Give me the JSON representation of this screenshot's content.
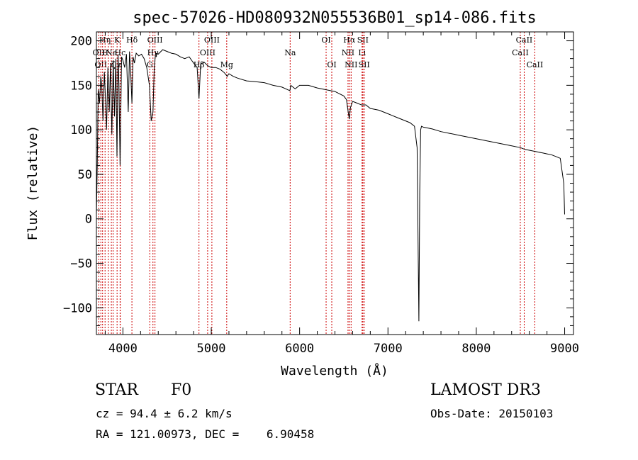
{
  "chart_data": {
    "type": "line",
    "title": "spec-57026-HD080932N055536B01_sp14-086.fits",
    "xlabel": "Wavelength (Å)",
    "ylabel": "Flux (relative)",
    "xlim": [
      3700,
      9100
    ],
    "ylim": [
      -130,
      210
    ],
    "x_ticks": [
      4000,
      5000,
      6000,
      7000,
      8000,
      9000
    ],
    "x_tick_labels": [
      "4000",
      "5000",
      "6000",
      "7000",
      "8000",
      "9000"
    ],
    "y_ticks": [
      -100,
      -50,
      0,
      50,
      100,
      150,
      200
    ],
    "y_tick_labels": [
      "−100",
      "−50",
      "0",
      "50",
      "100",
      "150",
      "200"
    ],
    "grid": false,
    "series": [
      {
        "name": "flux",
        "color": "#000000",
        "x": [
          3700,
          3710,
          3720,
          3735,
          3750,
          3760,
          3775,
          3790,
          3800,
          3815,
          3830,
          3845,
          3860,
          3875,
          3890,
          3905,
          3920,
          3933,
          3945,
          3955,
          3968,
          3985,
          4000,
          4020,
          4040,
          4060,
          4075,
          4090,
          4102,
          4115,
          4130,
          4150,
          4180,
          4210,
          4240,
          4270,
          4300,
          4320,
          4340,
          4355,
          4370,
          4400,
          4450,
          4500,
          4550,
          4600,
          4650,
          4700,
          4750,
          4800,
          4840,
          4861,
          4880,
          4920,
          4960,
          5000,
          5050,
          5100,
          5150,
          5180,
          5200,
          5250,
          5300,
          5400,
          5500,
          5600,
          5700,
          5800,
          5890,
          5900,
          5950,
          6000,
          6100,
          6200,
          6300,
          6400,
          6500,
          6530,
          6550,
          6563,
          6575,
          6600,
          6650,
          6700,
          6750,
          6800,
          6850,
          6900,
          6950,
          7000,
          7050,
          7100,
          7150,
          7200,
          7250,
          7300,
          7330,
          7350,
          7360,
          7370,
          7380,
          7400,
          7450,
          7500,
          7600,
          7700,
          7800,
          7900,
          8000,
          8100,
          8200,
          8300,
          8400,
          8500,
          8550,
          8600,
          8650,
          8700,
          8750,
          8800,
          8850,
          8900,
          8950,
          8990,
          9000
        ],
        "y": [
          5,
          60,
          145,
          130,
          160,
          150,
          110,
          165,
          140,
          100,
          170,
          120,
          175,
          95,
          178,
          115,
          180,
          70,
          185,
          150,
          60,
          182,
          178,
          170,
          185,
          120,
          188,
          160,
          130,
          182,
          175,
          186,
          183,
          185,
          180,
          170,
          150,
          110,
          120,
          170,
          186,
          185,
          190,
          188,
          186,
          185,
          182,
          180,
          182,
          175,
          170,
          135,
          174,
          176,
          172,
          170,
          170,
          168,
          164,
          160,
          163,
          160,
          158,
          155,
          154,
          153,
          150,
          148,
          144,
          150,
          146,
          150,
          150,
          147,
          145,
          143,
          138,
          134,
          120,
          112,
          125,
          132,
          130,
          128,
          128,
          124,
          123,
          122,
          120,
          118,
          116,
          114,
          112,
          110,
          108,
          104,
          80,
          -115,
          30,
          100,
          104,
          103,
          102,
          101,
          98,
          96,
          94,
          92,
          90,
          88,
          86,
          84,
          82,
          80,
          78,
          77,
          76,
          75,
          74,
          73,
          72,
          70,
          68,
          40,
          5
        ]
      }
    ],
    "line_markers": [
      {
        "wavelength": 3727,
        "label": "OII",
        "row": 1
      },
      {
        "wavelength": 3750,
        "label": "OII",
        "row": 2
      },
      {
        "wavelength": 3770,
        "label": "H",
        "row": 0
      },
      {
        "wavelength": 3798,
        "label": "H",
        "row": 1
      },
      {
        "wavelength": 3835,
        "label": "η",
        "row": 0
      },
      {
        "wavelength": 3869,
        "label": "Ne",
        "row": 1
      },
      {
        "wavelength": 3889,
        "label": "ζ",
        "row": 2
      },
      {
        "wavelength": 3934,
        "label": "K",
        "row": 0
      },
      {
        "wavelength": 3968,
        "label": "Hc",
        "row": 1
      },
      {
        "wavelength": 3970,
        "label": "ε",
        "row": 2
      },
      {
        "wavelength": 4102,
        "label": "Hδ",
        "row": 0
      },
      {
        "wavelength": 4304,
        "label": "G",
        "row": 2
      },
      {
        "wavelength": 4340,
        "label": "Hγ",
        "row": 1
      },
      {
        "wavelength": 4363,
        "label": "OIII",
        "row": 0
      },
      {
        "wavelength": 4861,
        "label": "Hβ",
        "row": 2
      },
      {
        "wavelength": 4959,
        "label": "OIII",
        "row": 1
      },
      {
        "wavelength": 5007,
        "label": "OIII",
        "row": 0
      },
      {
        "wavelength": 5175,
        "label": "Mg",
        "row": 2
      },
      {
        "wavelength": 5893,
        "label": "Na",
        "row": 1
      },
      {
        "wavelength": 6300,
        "label": "OI",
        "row": 0
      },
      {
        "wavelength": 6364,
        "label": "OI",
        "row": 2
      },
      {
        "wavelength": 6548,
        "label": "NII",
        "row": 1
      },
      {
        "wavelength": 6563,
        "label": "Hα",
        "row": 0
      },
      {
        "wavelength": 6583,
        "label": "NII",
        "row": 2
      },
      {
        "wavelength": 6707,
        "label": "Li",
        "row": 1
      },
      {
        "wavelength": 6716,
        "label": "SII",
        "row": 0
      },
      {
        "wavelength": 6731,
        "label": "SII",
        "row": 2
      },
      {
        "wavelength": 8498,
        "label": "CaII",
        "row": 1
      },
      {
        "wavelength": 8542,
        "label": "CaII",
        "row": 0
      },
      {
        "wavelength": 8662,
        "label": "CaII",
        "row": 2
      }
    ],
    "marker_color": "#cc0000"
  },
  "info": {
    "object_class": "STAR",
    "subclass": "F0",
    "survey": "LAMOST DR3",
    "cz": "cz = 94.4 ± 6.2 km/s",
    "obs_date": "Obs-Date: 20150103",
    "coords": "RA = 121.00973, DEC =    6.90458"
  }
}
